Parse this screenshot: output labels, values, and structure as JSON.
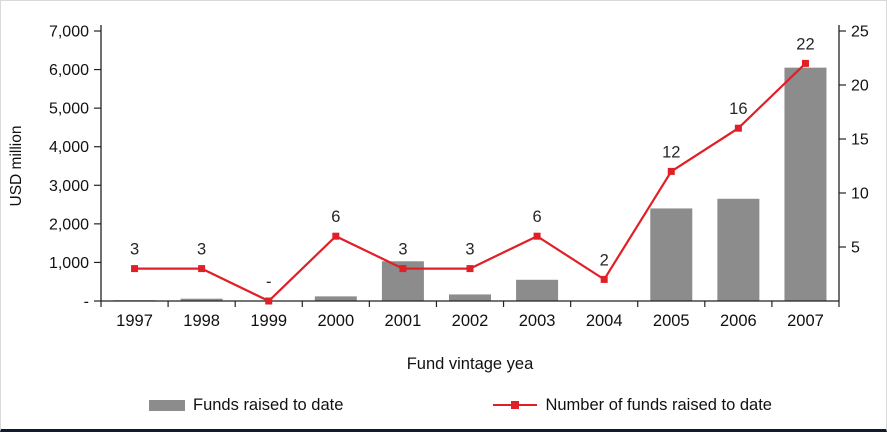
{
  "chart_data": {
    "type": "combo",
    "categories": [
      "1997",
      "1998",
      "1999",
      "2000",
      "2001",
      "2002",
      "2003",
      "2004",
      "2005",
      "2006",
      "2007"
    ],
    "series": [
      {
        "name": "Funds raised to date",
        "type": "bar",
        "axis": "left",
        "color": "#8c8c8c",
        "values": [
          20,
          60,
          0,
          120,
          1030,
          170,
          550,
          0,
          2400,
          2650,
          6050
        ]
      },
      {
        "name": "Number of funds raised to date",
        "type": "line",
        "axis": "right",
        "color": "#e01f26",
        "values": [
          3,
          3,
          0,
          6,
          3,
          3,
          6,
          2,
          12,
          16,
          22
        ],
        "point_labels": [
          "3",
          "3",
          "-",
          "6",
          "3",
          "3",
          "6",
          "2",
          "12",
          "16",
          "22"
        ]
      }
    ],
    "left_axis": {
      "title": "USD million",
      "min": 0,
      "max": 7000,
      "tick_step": 1000,
      "tick_labels": [
        "-",
        "1,000",
        "2,000",
        "3,000",
        "4,000",
        "5,000",
        "6,000",
        "7,000"
      ]
    },
    "right_axis": {
      "min": 0,
      "max": 25,
      "tick_step": 5,
      "tick_labels": [
        "5",
        "10",
        "15",
        "20",
        "25"
      ]
    },
    "x_axis": {
      "title": "Fund vintage yea"
    },
    "legend_position": "bottom",
    "grid": "off"
  }
}
